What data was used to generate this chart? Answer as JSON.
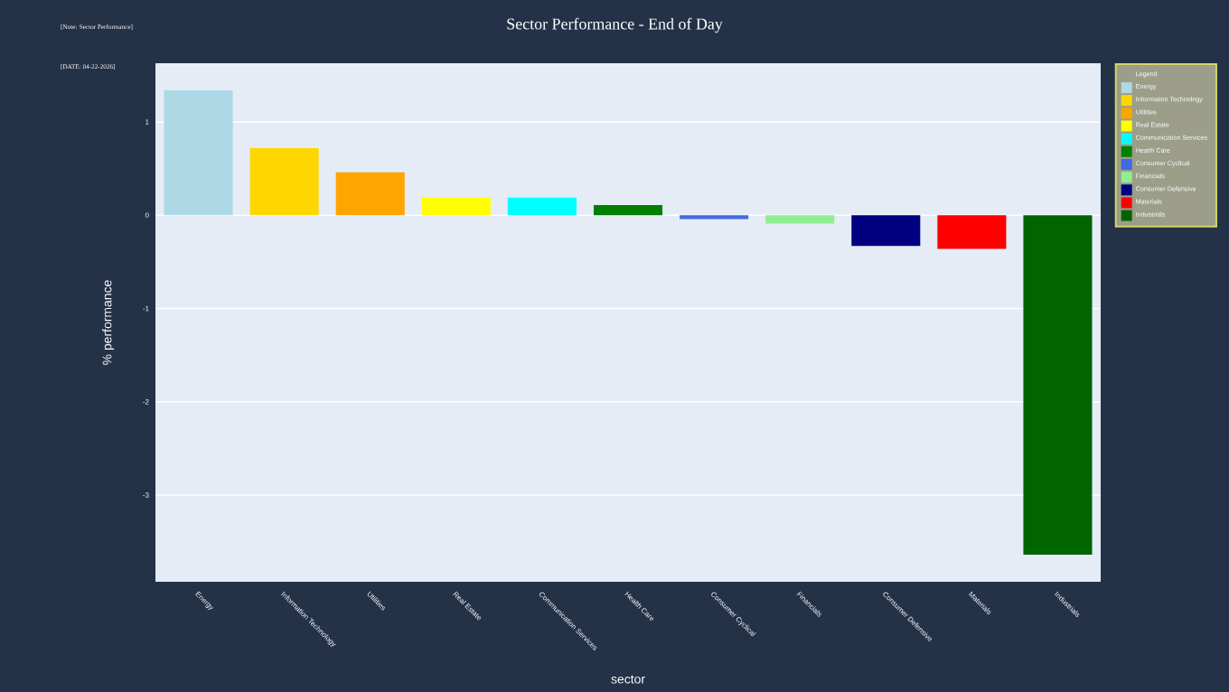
{
  "chart_data": {
    "type": "bar",
    "title": "Sector Performance - End of Day",
    "xlabel": "sector",
    "ylabel": "% performance",
    "legend_title": "Legend",
    "annotations": [
      "[Note: Sector Performance]",
      "[DATE: 04-22-2026]"
    ],
    "categories": [
      "Energy",
      "Information Technology",
      "Utilities",
      "Real Estate",
      "Communication Services",
      "Health Care",
      "Consumer Cyclical",
      "Financials",
      "Consumer Defensive",
      "Materials",
      "Industrials"
    ],
    "series": [
      {
        "name": "Energy",
        "color": "#add8e6",
        "values": [
          1.34,
          null,
          null,
          null,
          null,
          null,
          null,
          null,
          null,
          null,
          null
        ]
      },
      {
        "name": "Information Technology",
        "color": "#ffd700",
        "values": [
          null,
          0.72,
          null,
          null,
          null,
          null,
          null,
          null,
          null,
          null,
          null
        ]
      },
      {
        "name": "Utilities",
        "color": "#ffa500",
        "values": [
          null,
          null,
          0.46,
          null,
          null,
          null,
          null,
          null,
          null,
          null,
          null
        ]
      },
      {
        "name": "Real Estate",
        "color": "#ffff00",
        "values": [
          null,
          null,
          null,
          0.19,
          null,
          null,
          null,
          null,
          null,
          null,
          null
        ]
      },
      {
        "name": "Communication Services",
        "color": "#00ffff",
        "values": [
          null,
          null,
          null,
          null,
          0.19,
          null,
          null,
          null,
          null,
          null,
          null
        ]
      },
      {
        "name": "Health Care",
        "color": "#008000",
        "values": [
          null,
          null,
          null,
          null,
          null,
          0.11,
          null,
          null,
          null,
          null,
          null
        ]
      },
      {
        "name": "Consumer Cyclical",
        "color": "#4169e1",
        "values": [
          null,
          null,
          null,
          null,
          null,
          null,
          -0.04,
          null,
          null,
          null,
          null
        ]
      },
      {
        "name": "Financials",
        "color": "#90ee90",
        "values": [
          null,
          null,
          null,
          null,
          null,
          null,
          null,
          -0.09,
          null,
          null,
          null
        ]
      },
      {
        "name": "Consumer Defensive",
        "color": "#000080",
        "values": [
          null,
          null,
          null,
          null,
          null,
          null,
          null,
          null,
          -0.33,
          null,
          null
        ]
      },
      {
        "name": "Materials",
        "color": "#ff0000",
        "values": [
          null,
          null,
          null,
          null,
          null,
          null,
          null,
          null,
          null,
          -0.36,
          null
        ]
      },
      {
        "name": "Industrials",
        "color": "#006400",
        "values": [
          null,
          null,
          null,
          null,
          null,
          null,
          null,
          null,
          null,
          null,
          -3.64
        ]
      }
    ],
    "ylim": [
      -3.93,
      1.63
    ],
    "yticks": [
      -3,
      -2,
      -1,
      0,
      1
    ],
    "grid": "y",
    "legend": "top right"
  }
}
